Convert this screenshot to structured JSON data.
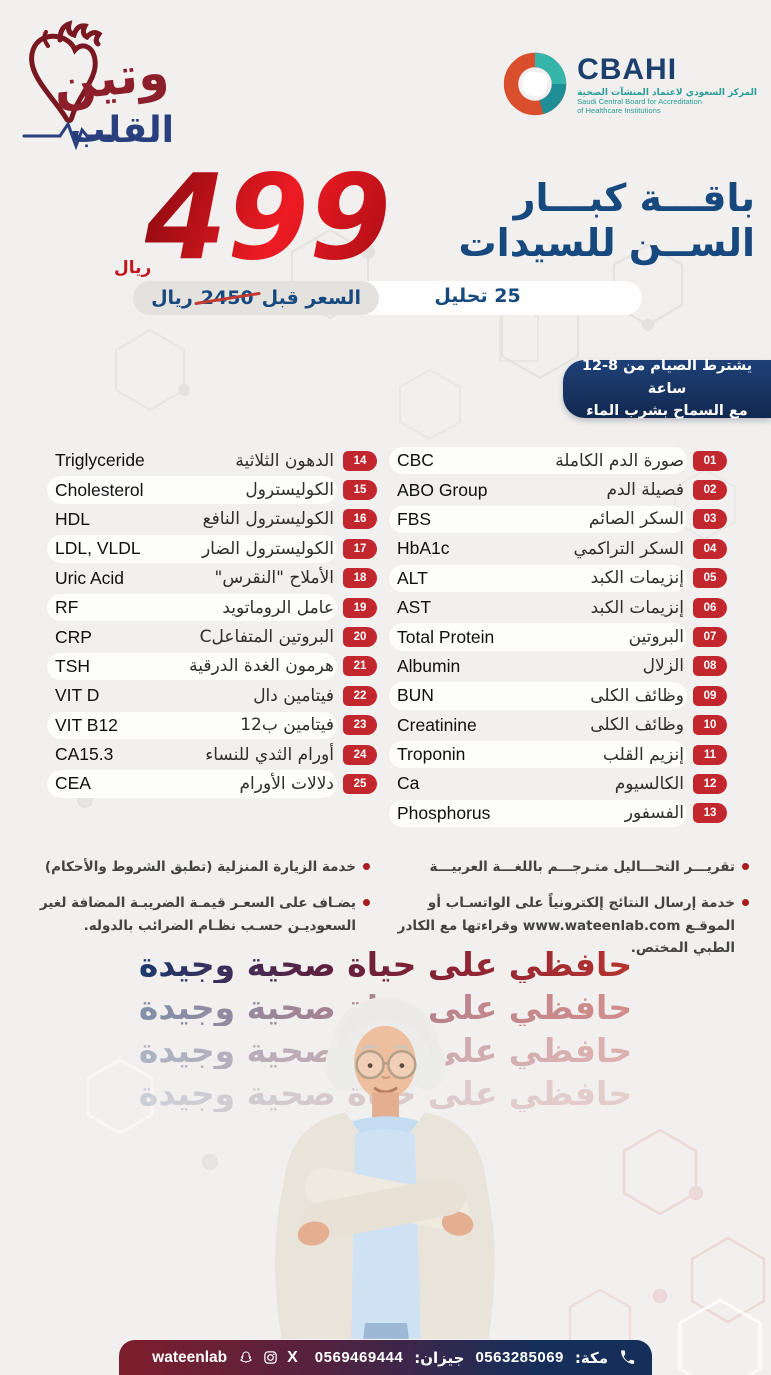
{
  "brand": {
    "wateen_top": "وتين",
    "wateen_bottom": "القلب"
  },
  "cbahi": {
    "name": "CBAHI",
    "ar": "المركز السعودي لاعتماد المنشآت الصحية",
    "en1": "Saudi Central Board for Accreditation",
    "en2": "of Healthcare Institutions"
  },
  "offer": {
    "title_line1": "باقـــة كبـــار",
    "title_line2": "الســن للسيدات",
    "price": "499",
    "currency": "ريال",
    "old_price_label": "السعر قبل",
    "old_price": "2450",
    "old_currency": "ريال",
    "tests_count": "25 تحليل"
  },
  "fasting": {
    "line1": "يشترط الصيام من 8-12 ساعة",
    "line2": "مع السماح بشرب الماء"
  },
  "tests": [
    {
      "num": "01",
      "ar": "صورة الدم الكاملة",
      "en": "CBC"
    },
    {
      "num": "02",
      "ar": "فصيلة الدم",
      "en": "ABO Group"
    },
    {
      "num": "03",
      "ar": "السكر الصائم",
      "en": "FBS"
    },
    {
      "num": "04",
      "ar": "السكر التراكمي",
      "en": "HbA1c"
    },
    {
      "num": "05",
      "ar": "إنزيمات الكبد",
      "en": "ALT"
    },
    {
      "num": "06",
      "ar": "إنزيمات الكبد",
      "en": "AST"
    },
    {
      "num": "07",
      "ar": "البروتين",
      "en": "Total Protein"
    },
    {
      "num": "08",
      "ar": "الزلال",
      "en": "Albumin"
    },
    {
      "num": "09",
      "ar": "وظائف الكلى",
      "en": "BUN"
    },
    {
      "num": "10",
      "ar": "وظائف الكلى",
      "en": "Creatinine"
    },
    {
      "num": "11",
      "ar": "إنزيم القلب",
      "en": "Troponin"
    },
    {
      "num": "12",
      "ar": "الكالسيوم",
      "en": "Ca"
    },
    {
      "num": "13",
      "ar": "الفسفور",
      "en": "Phosphorus"
    },
    {
      "num": "14",
      "ar": "الدهون الثلاثية",
      "en": "Triglyceride"
    },
    {
      "num": "15",
      "ar": "الكوليسترول",
      "en": "Cholesterol"
    },
    {
      "num": "16",
      "ar": "الكوليسترول النافع",
      "en": "HDL"
    },
    {
      "num": "17",
      "ar": "الكوليسترول الضار",
      "en": "LDL, VLDL"
    },
    {
      "num": "18",
      "ar": "الأملاح \"النقرس\"",
      "en": "Uric Acid"
    },
    {
      "num": "19",
      "ar": "عامل الروماتويد",
      "en": "RF"
    },
    {
      "num": "20",
      "ar": "البروتين المتفاعلC",
      "en": "CRP"
    },
    {
      "num": "21",
      "ar": "هرمون الغدة الدرقية",
      "en": "TSH"
    },
    {
      "num": "22",
      "ar": "فيتامين دال",
      "en": "VIT D"
    },
    {
      "num": "23",
      "ar": "فيتامين ب12",
      "en": "VIT B12"
    },
    {
      "num": "24",
      "ar": "أورام الثدي للنساء",
      "en": "CA15.3"
    },
    {
      "num": "25",
      "ar": "دلالات الأورام",
      "en": "CEA"
    }
  ],
  "notes": {
    "right": [
      "تقريـــر التحـــاليل متـرجـــم باللغـــة العربيـــة",
      "خدمة إرسال النتائج إلكترونياً على الواتسـاب أو الموقـع www.wateenlab.com وقراءتها مع الكادر الطبي المختص."
    ],
    "left": [
      "خدمة الزيارة المنزلية (تطبق الشروط والأحكام)",
      "يضـاف على السعـر قيمـة الضريبـة المضافة لغير السعوديـن حسـب نظـام الضرائب بالدوله."
    ]
  },
  "slogan": "حافظي على حياة صحية وجيدة",
  "footer": {
    "makkah_label": "مكة:",
    "makkah_phone": "0563285069",
    "jizan_label": "جيزان:",
    "jizan_phone": "0569469444",
    "handle": "wateenlab"
  },
  "colors": {
    "navy": "#17497e",
    "red": "#c2272e",
    "maroon": "#7a1822",
    "teal": "#2a9d97",
    "background": "#f1f0ee"
  }
}
